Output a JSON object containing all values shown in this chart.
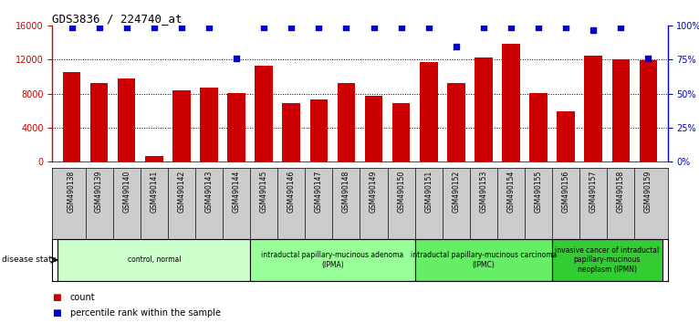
{
  "title": "GDS3836 / 224740_at",
  "samples": [
    "GSM490138",
    "GSM490139",
    "GSM490140",
    "GSM490141",
    "GSM490142",
    "GSM490143",
    "GSM490144",
    "GSM490145",
    "GSM490146",
    "GSM490147",
    "GSM490148",
    "GSM490149",
    "GSM490150",
    "GSM490151",
    "GSM490152",
    "GSM490153",
    "GSM490154",
    "GSM490155",
    "GSM490156",
    "GSM490157",
    "GSM490158",
    "GSM490159"
  ],
  "counts": [
    10500,
    9300,
    9800,
    650,
    8400,
    8700,
    8100,
    11300,
    6900,
    7300,
    9300,
    7800,
    6900,
    11700,
    9300,
    12300,
    13900,
    8100,
    5900,
    12500,
    12000,
    11900
  ],
  "percentiles": [
    99,
    99,
    99,
    99,
    99,
    99,
    76,
    99,
    99,
    99,
    99,
    99,
    99,
    99,
    85,
    99,
    99,
    99,
    99,
    97,
    99,
    76
  ],
  "ylim_left": [
    0,
    16000
  ],
  "ylim_right": [
    0,
    100
  ],
  "yticks_left": [
    0,
    4000,
    8000,
    12000,
    16000
  ],
  "yticks_right": [
    0,
    25,
    50,
    75,
    100
  ],
  "bar_color": "#cc0000",
  "dot_color": "#0000cc",
  "groups": [
    {
      "label": "control, normal",
      "start": 0,
      "end": 7,
      "color": "#ccffcc"
    },
    {
      "label": "intraductal papillary-mucinous adenoma\n(IPMA)",
      "start": 7,
      "end": 13,
      "color": "#99ff99"
    },
    {
      "label": "intraductal papillary-mucinous carcinoma\n(IPMC)",
      "start": 13,
      "end": 18,
      "color": "#66ee66"
    },
    {
      "label": "invasive cancer of intraductal\npapillary-mucinous\nneoplasm (IPMN)",
      "start": 18,
      "end": 22,
      "color": "#33cc33"
    }
  ],
  "disease_state_label": "disease state",
  "legend_count_label": "count",
  "legend_pct_label": "percentile rank within the sample",
  "background_color": "#ffffff",
  "tick_area_color": "#cccccc"
}
